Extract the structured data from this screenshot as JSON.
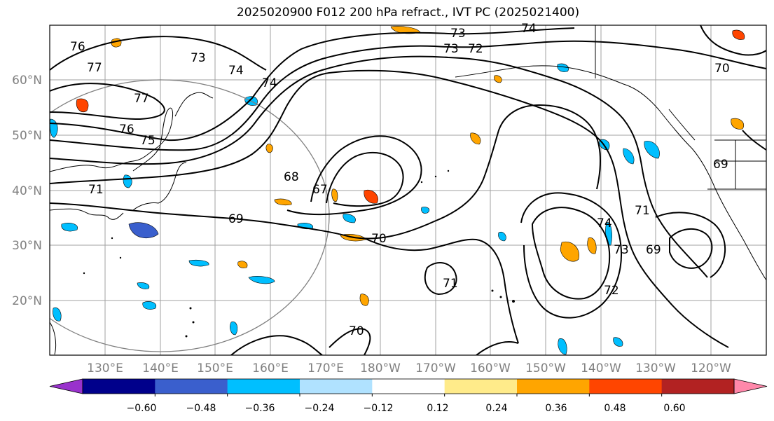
{
  "title": "2025020900 F012 200 hPa refract., IVT PC (2025021400)",
  "lat_ticks": [
    "60°N",
    "50°N",
    "40°N",
    "30°N",
    "20°N"
  ],
  "lon_ticks": [
    "130°E",
    "140°E",
    "150°E",
    "160°E",
    "170°E",
    "180°W",
    "170°W",
    "160°W",
    "150°W",
    "140°W",
    "130°W",
    "120°W"
  ],
  "contour_labels": [
    "73",
    "74",
    "73",
    "72",
    "70",
    "77",
    "73",
    "74",
    "74",
    "77",
    "76",
    "75",
    "71",
    "68",
    "67",
    "69",
    "70",
    "71",
    "70",
    "74",
    "73",
    "72",
    "71",
    "69",
    "69",
    "76"
  ],
  "colorbar": {
    "ticks": [
      "−0.60",
      "−0.48",
      "−0.36",
      "−0.24",
      "−0.12",
      "0.12",
      "0.24",
      "0.36",
      "0.48",
      "0.60"
    ],
    "colors": [
      "#9932cc",
      "#00008b",
      "#3a5fcd",
      "#00bfff",
      "#b0e2ff",
      "#ffffff",
      "#ffeb8a",
      "#ffa500",
      "#ff4500",
      "#b22222",
      "#ff88aa"
    ]
  },
  "colors": {
    "contour": "#000000",
    "grid": "#a0a0a0",
    "coast": "#000000",
    "circle": "#808080"
  }
}
